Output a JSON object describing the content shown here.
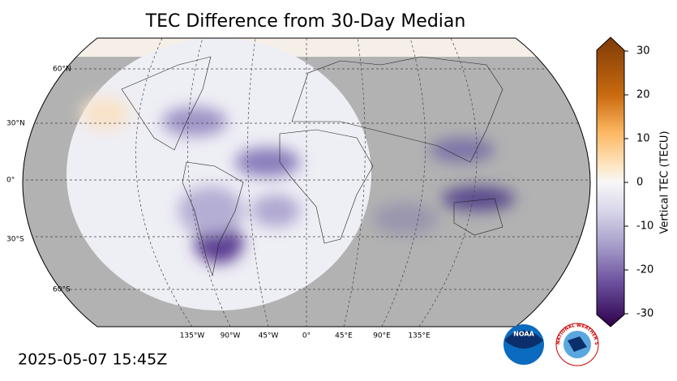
{
  "title": "TEC Difference from 30-Day Median",
  "timestamp": "2025-05-07 15:45Z",
  "lat_labels": [
    "60°N",
    "30°N",
    "0°",
    "30°S",
    "60°S"
  ],
  "lon_labels": [
    "135°W",
    "90°W",
    "45°W",
    "0°",
    "45°E",
    "90°E",
    "135°E"
  ],
  "colorbar": {
    "label": "Vertical TEC (TECU)",
    "lim": [
      -30,
      30
    ],
    "ticks": [
      30,
      20,
      10,
      0,
      -10,
      -20,
      -30
    ]
  },
  "logos": {
    "noaa": "NOAA",
    "nws": "NATIONAL WEATHER SERVICE"
  }
}
